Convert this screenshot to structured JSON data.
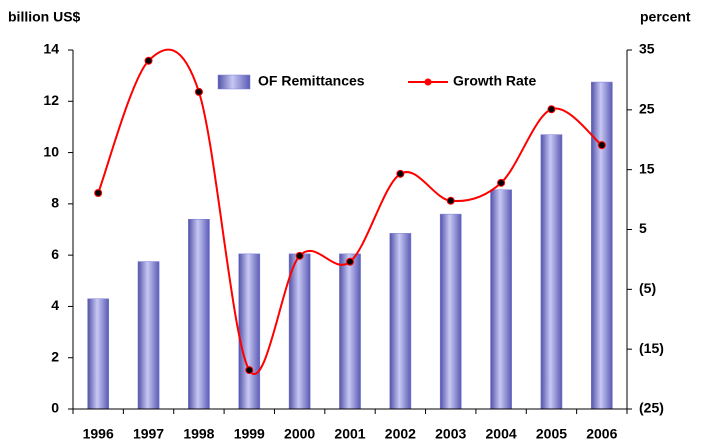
{
  "chart_data": {
    "type": "bar",
    "y_label": "billion US$",
    "y2_label": "percent",
    "categories": [
      "1996",
      "1997",
      "1998",
      "1999",
      "2000",
      "2001",
      "2002",
      "2003",
      "2004",
      "2005",
      "2006"
    ],
    "series": [
      {
        "name": "OF Remittances",
        "type": "bar",
        "color": "#7b7bd6",
        "values": [
          4.3,
          5.75,
          7.4,
          6.05,
          6.05,
          6.05,
          6.85,
          7.6,
          8.55,
          10.7,
          12.75
        ]
      },
      {
        "name": "Growth Rate",
        "type": "line",
        "axis": "y2",
        "color": "#ff0000",
        "values": [
          11.1,
          33.2,
          28.0,
          -18.5,
          0.6,
          -0.4,
          14.3,
          9.8,
          12.8,
          25.1,
          19.1
        ]
      }
    ],
    "ylim": [
      0,
      14
    ],
    "yticks": [
      0,
      2,
      4,
      6,
      8,
      10,
      12,
      14
    ],
    "y2lim": [
      -25,
      35
    ],
    "y2ticks": [
      {
        "value": -25,
        "label": "(25)"
      },
      {
        "value": -15,
        "label": "(15)"
      },
      {
        "value": -5,
        "label": "(5)"
      },
      5,
      15,
      25,
      35
    ]
  }
}
